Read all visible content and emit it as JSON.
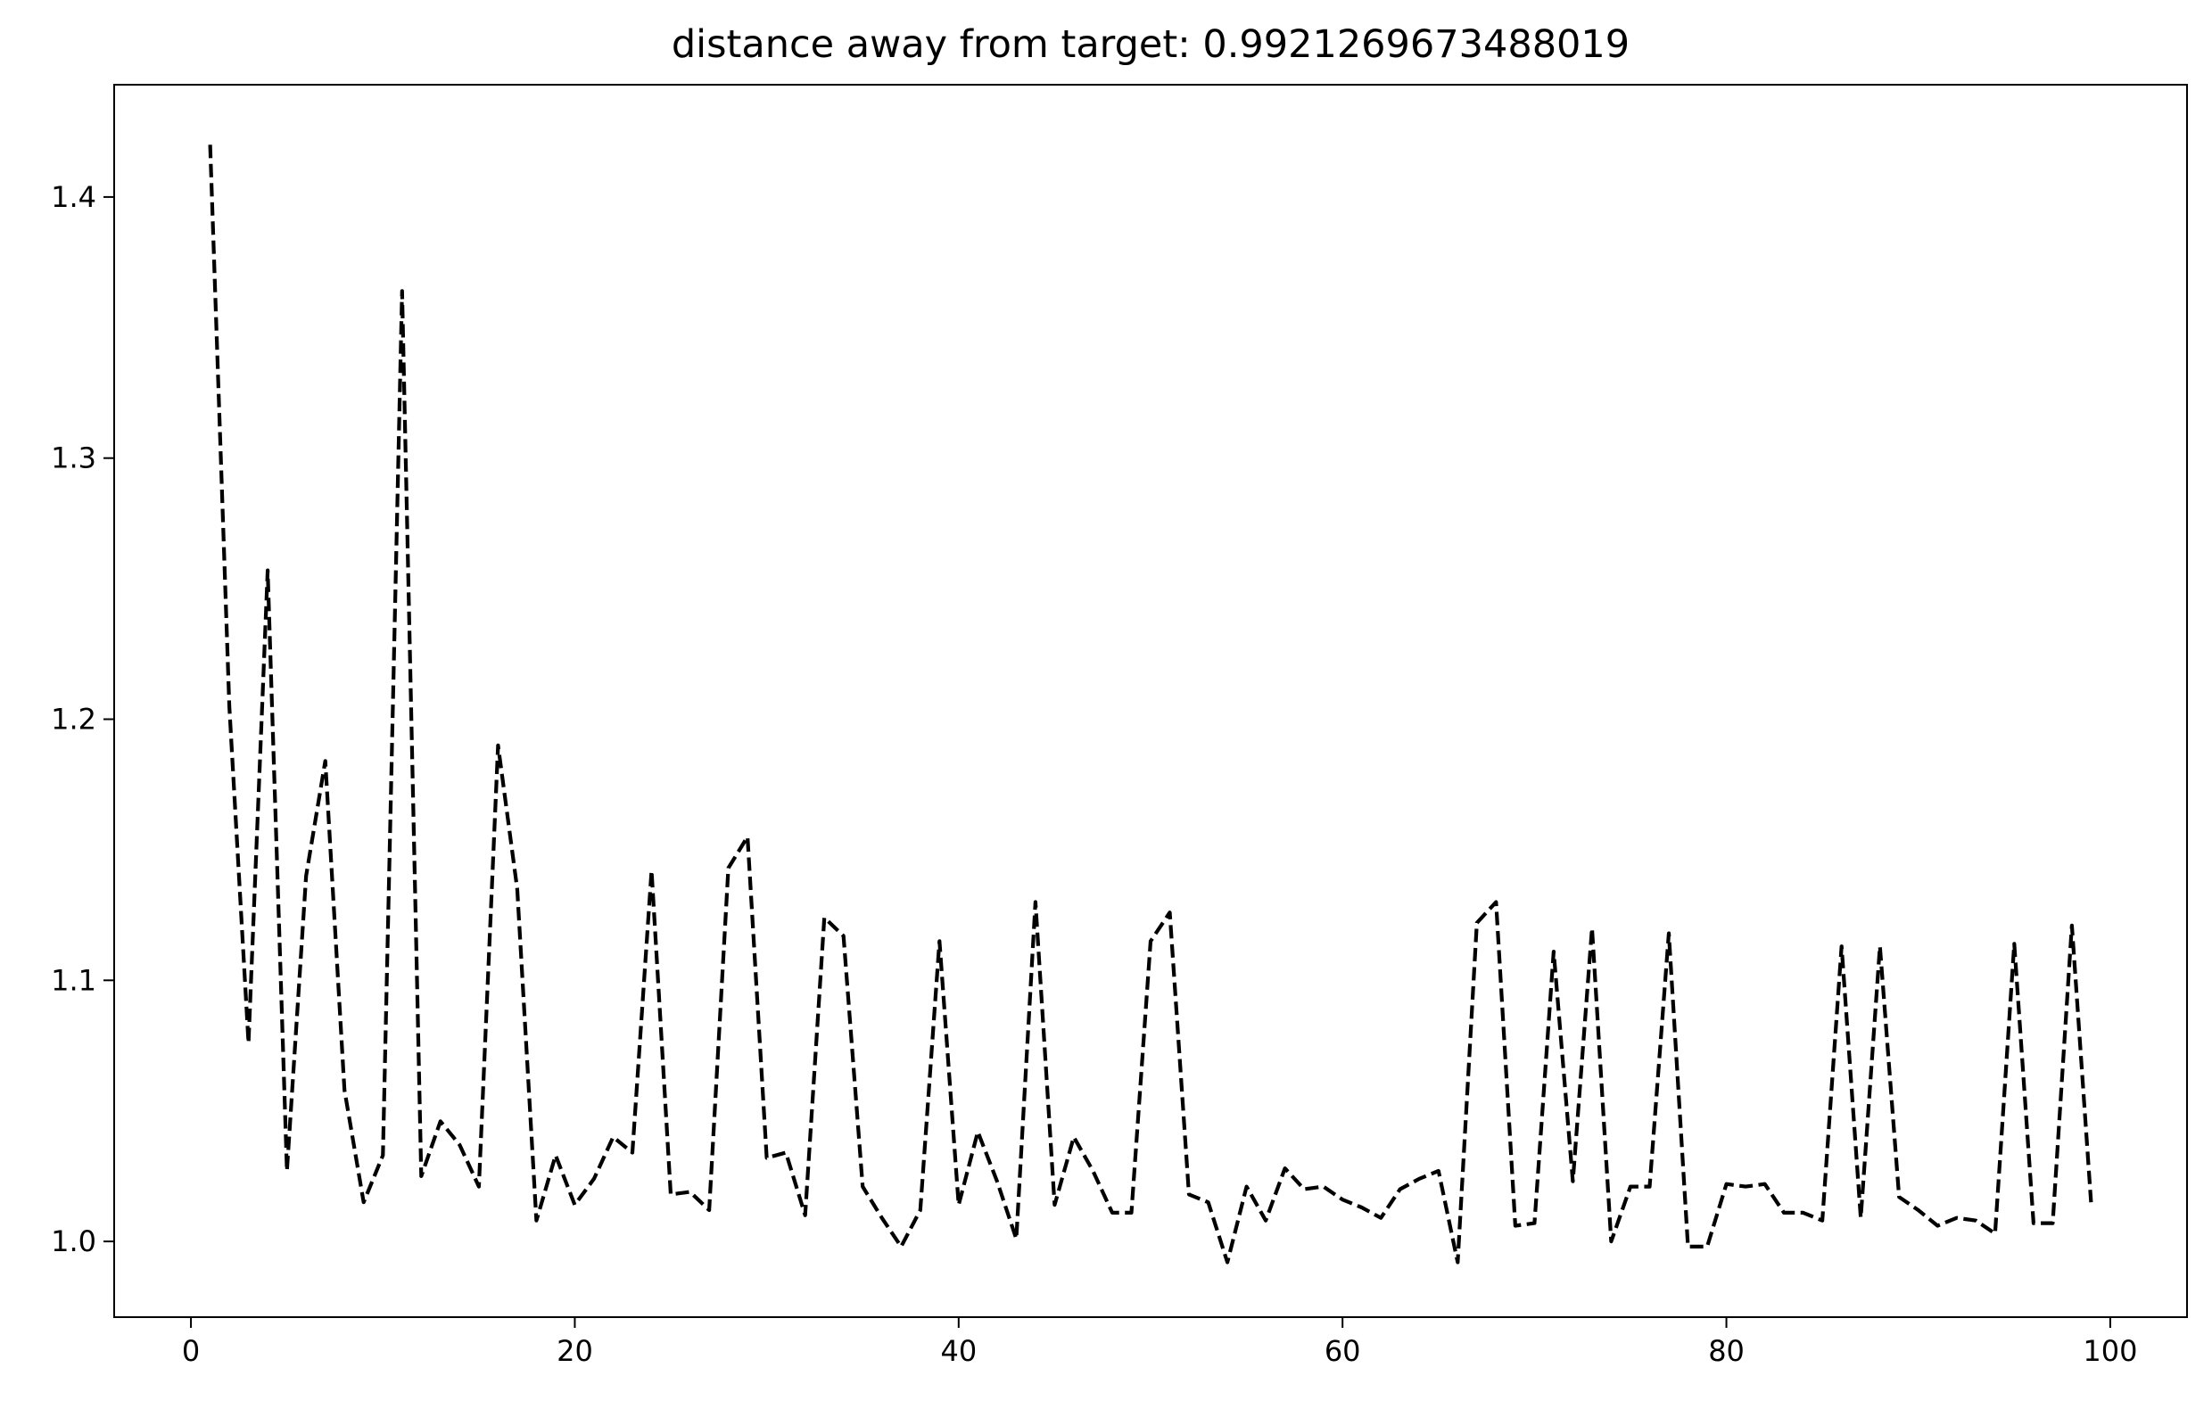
{
  "chart_data": {
    "type": "line",
    "title": "distance away from target: 0.9921269673488019",
    "xlabel": "",
    "ylabel": "",
    "xlim": [
      -4,
      104
    ],
    "ylim": [
      0.971,
      1.443
    ],
    "x_ticks": [
      0,
      20,
      40,
      60,
      80,
      100
    ],
    "y_ticks": [
      1.0,
      1.1,
      1.2,
      1.3,
      1.4
    ],
    "grid": false,
    "legend": "none",
    "series": [
      {
        "color": "#000000",
        "line_style": "dashed",
        "x": [
          1,
          2,
          3,
          4,
          5,
          6,
          7,
          8,
          9,
          10,
          11,
          12,
          13,
          14,
          15,
          16,
          17,
          18,
          19,
          20,
          21,
          22,
          23,
          24,
          25,
          26,
          27,
          28,
          29,
          30,
          31,
          32,
          33,
          34,
          35,
          36,
          37,
          38,
          39,
          40,
          41,
          42,
          43,
          44,
          45,
          46,
          47,
          48,
          49,
          50,
          51,
          52,
          53,
          54,
          55,
          56,
          57,
          58,
          59,
          60,
          61,
          62,
          63,
          64,
          65,
          66,
          67,
          68,
          69,
          70,
          71,
          72,
          73,
          74,
          75,
          76,
          77,
          78,
          79,
          80,
          81,
          82,
          83,
          84,
          85,
          86,
          87,
          88,
          89,
          90,
          91,
          92,
          93,
          94,
          95,
          96,
          97,
          98,
          99
        ],
        "y": [
          1.42,
          1.205,
          1.076,
          1.257,
          1.027,
          1.14,
          1.184,
          1.058,
          1.015,
          1.033,
          1.364,
          1.025,
          1.046,
          1.037,
          1.021,
          1.19,
          1.135,
          1.008,
          1.033,
          1.014,
          1.024,
          1.04,
          1.034,
          1.142,
          1.018,
          1.019,
          1.012,
          1.143,
          1.155,
          1.032,
          1.034,
          1.01,
          1.124,
          1.117,
          1.021,
          1.009,
          0.998,
          1.012,
          1.115,
          1.014,
          1.042,
          1.023,
          1.001,
          1.13,
          1.014,
          1.04,
          1.027,
          1.011,
          1.011,
          1.115,
          1.126,
          1.018,
          1.015,
          0.992,
          1.021,
          1.008,
          1.028,
          1.02,
          1.021,
          1.016,
          1.013,
          1.009,
          1.02,
          1.024,
          1.027,
          0.992,
          1.122,
          1.13,
          1.006,
          1.007,
          1.111,
          1.023,
          1.12,
          1.0,
          1.021,
          1.021,
          1.118,
          0.998,
          0.998,
          1.022,
          1.021,
          1.022,
          1.011,
          1.011,
          1.008,
          1.113,
          1.009,
          1.113,
          1.017,
          1.012,
          1.006,
          1.009,
          1.008,
          1.003,
          1.114,
          1.007,
          1.007,
          1.121,
          1.015
        ]
      }
    ]
  }
}
